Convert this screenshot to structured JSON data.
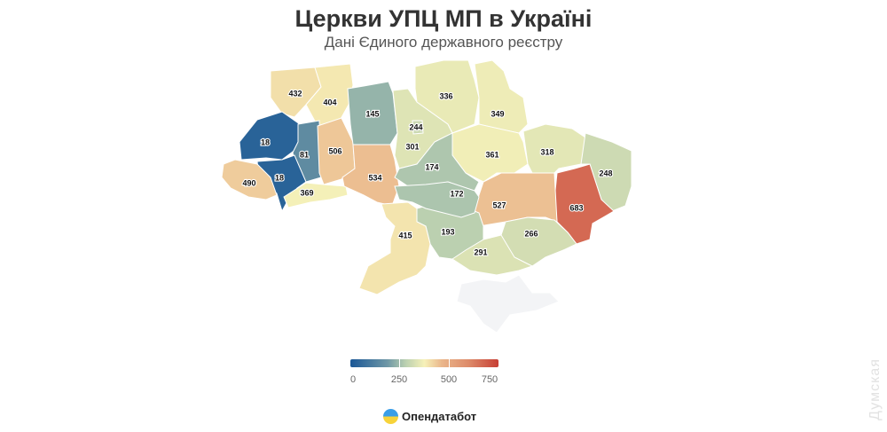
{
  "title": "Церкви УПЦ МП в Україні",
  "subtitle": "Дані Єдиного державного реєстру",
  "legend": {
    "ticks": [
      "0",
      "250",
      "500",
      "750"
    ],
    "min": 0,
    "max": 750,
    "colors": [
      "#1a5796",
      "#b9cfb0",
      "#f6f1b8",
      "#eab58a",
      "#c73f35"
    ]
  },
  "logo": {
    "text": "Опендатабот"
  },
  "watermark": "Думская",
  "chart_data": {
    "type": "choropleth",
    "title": "Церкви УПЦ МП в Україні",
    "subtitle": "Дані Єдиного державного реєстру",
    "scale": [
      0,
      750
    ],
    "regions": [
      {
        "id": "volyn",
        "value": 432
      },
      {
        "id": "rivne",
        "value": 404
      },
      {
        "id": "lviv",
        "value": 18
      },
      {
        "id": "ternopil",
        "value": 81
      },
      {
        "id": "ivano-frankivsk",
        "value": 18
      },
      {
        "id": "zakarpattia",
        "value": 490
      },
      {
        "id": "chernivtsi",
        "value": 369
      },
      {
        "id": "khmelnytskyi",
        "value": 506
      },
      {
        "id": "vinnytsia",
        "value": 534
      },
      {
        "id": "zhytomyr",
        "value": 145
      },
      {
        "id": "kyiv-oblast",
        "value": 301
      },
      {
        "id": "kyiv-city",
        "value": 244
      },
      {
        "id": "chernihiv",
        "value": 336
      },
      {
        "id": "sumy",
        "value": 349
      },
      {
        "id": "poltava",
        "value": 361
      },
      {
        "id": "kharkiv",
        "value": 318
      },
      {
        "id": "luhansk",
        "value": 248
      },
      {
        "id": "donetsk",
        "value": 683
      },
      {
        "id": "dnipro",
        "value": 527
      },
      {
        "id": "zaporizhzhia",
        "value": 266
      },
      {
        "id": "kherson",
        "value": 291
      },
      {
        "id": "mykolaiv",
        "value": 193
      },
      {
        "id": "odesa",
        "value": 415
      },
      {
        "id": "cherkasy",
        "value": 174
      },
      {
        "id": "kirovohrad",
        "value": 172
      },
      {
        "id": "crimea",
        "value": null
      }
    ]
  }
}
